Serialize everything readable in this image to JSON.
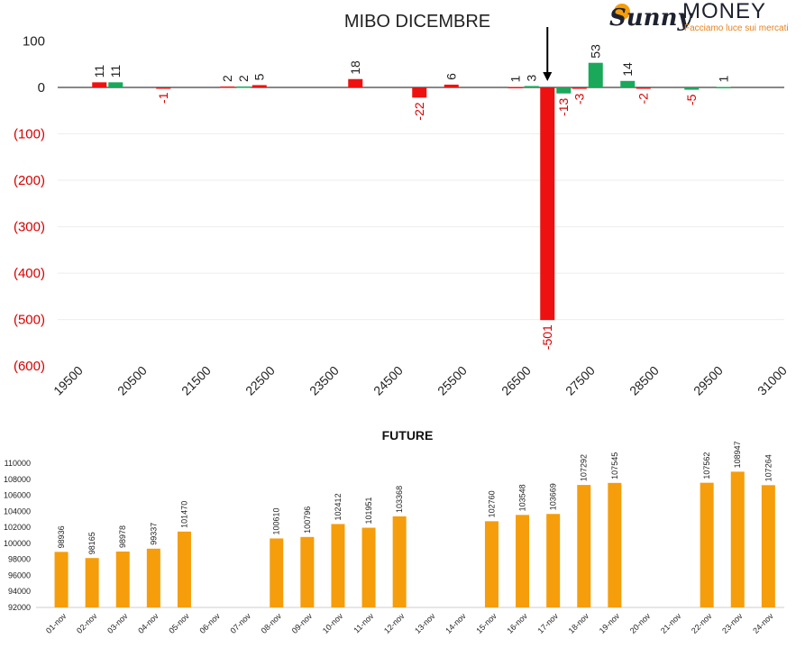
{
  "logo": {
    "sunny": "Sunny",
    "money": "MONEY",
    "tagline": "Facciamo luce sui mercati"
  },
  "colors": {
    "red": "#ee1111",
    "green": "#1aa85a",
    "orange": "#f59d0b",
    "neg_label": "#d80000",
    "text": "#222222"
  },
  "chart_data": [
    {
      "type": "bar",
      "title": "MIBO DICEMBRE",
      "categories": [
        "19500",
        "20000",
        "20500",
        "21000",
        "21500",
        "22000",
        "22500",
        "23000",
        "23500",
        "24000",
        "24500",
        "25000",
        "25500",
        "26000",
        "26500",
        "27000",
        "27500",
        "28000",
        "28500",
        "29000",
        "29500",
        "30000",
        "31000"
      ],
      "x_tick_labels": [
        "19500",
        "20500",
        "21500",
        "22500",
        "23500",
        "24500",
        "25500",
        "26500",
        "27500",
        "28500",
        "29500",
        "31000"
      ],
      "series": [
        {
          "color": "red",
          "values": [
            null,
            11,
            null,
            -1,
            null,
            2,
            5,
            null,
            null,
            18,
            null,
            -22,
            6,
            null,
            1,
            -501,
            -3,
            null,
            -2,
            null,
            null,
            null,
            null
          ]
        },
        {
          "color": "green",
          "values": [
            null,
            11,
            null,
            null,
            null,
            2,
            null,
            null,
            null,
            null,
            null,
            null,
            null,
            null,
            3,
            -13,
            53,
            14,
            null,
            -5,
            1,
            null,
            null
          ]
        }
      ],
      "y_ticks": [
        "100",
        "0",
        "(100)",
        "(200)",
        "(300)",
        "(400)",
        "(500)",
        "(600)"
      ],
      "ylim": [
        -600,
        100
      ],
      "grid": true,
      "arrow_at": "27000"
    },
    {
      "type": "bar",
      "title": "FUTURE",
      "categories": [
        "01-nov",
        "02-nov",
        "03-nov",
        "04-nov",
        "05-nov",
        "06-nov",
        "07-nov",
        "08-nov",
        "09-nov",
        "10-nov",
        "11-nov",
        "12-nov",
        "13-nov",
        "14-nov",
        "15-nov",
        "16-nov",
        "17-nov",
        "18-nov",
        "19-nov",
        "20-nov",
        "21-nov",
        "22-nov",
        "23-nov",
        "24-nov"
      ],
      "values": [
        98936,
        98165,
        98978,
        99337,
        101470,
        null,
        null,
        100610,
        100796,
        102412,
        101951,
        103368,
        null,
        null,
        102760,
        103548,
        103669,
        107292,
        107545,
        null,
        null,
        107562,
        108947,
        107264
      ],
      "y_ticks": [
        "92000",
        "94000",
        "96000",
        "98000",
        "100000",
        "102000",
        "104000",
        "106000",
        "108000",
        "110000"
      ],
      "ylim": [
        92000,
        110000
      ],
      "grid": false
    }
  ]
}
